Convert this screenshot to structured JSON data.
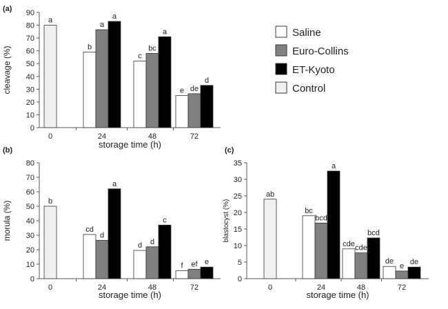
{
  "chart_data": [
    {
      "type": "bar",
      "panel_label": "(a)",
      "xlabel": "storage time (h)",
      "ylabel": "cleavage (%)",
      "ylim": [
        0,
        90
      ],
      "yticks": [
        0,
        10,
        20,
        30,
        40,
        50,
        60,
        70,
        80,
        90
      ],
      "groups": [
        {
          "label": "0",
          "bars": [
            {
              "series": "Control",
              "value": 80,
              "letter": "a"
            }
          ]
        },
        {
          "label": "24",
          "bars": [
            {
              "series": "Saline",
              "value": 59,
              "letter": "b"
            },
            {
              "series": "Euro-Collins",
              "value": 76.5,
              "letter": "a"
            },
            {
              "series": "ET-Kyoto",
              "value": 83,
              "letter": "a"
            }
          ]
        },
        {
          "label": "48",
          "bars": [
            {
              "series": "Saline",
              "value": 52,
              "letter": "c"
            },
            {
              "series": "Euro-Collins",
              "value": 58,
              "letter": "bc"
            },
            {
              "series": "ET-Kyoto",
              "value": 71,
              "letter": "a"
            }
          ]
        },
        {
          "label": "72",
          "bars": [
            {
              "series": "Saline",
              "value": 25,
              "letter": "e"
            },
            {
              "series": "Euro-Collins",
              "value": 26.5,
              "letter": "de"
            },
            {
              "series": "ET-Kyoto",
              "value": 33,
              "letter": "d"
            }
          ]
        }
      ]
    },
    {
      "type": "bar",
      "panel_label": "(b)",
      "xlabel": "storage time (h)",
      "ylabel": "morula (%)",
      "ylim": [
        0,
        80
      ],
      "yticks": [
        0,
        10,
        20,
        30,
        40,
        50,
        60,
        70,
        80
      ],
      "groups": [
        {
          "label": "0",
          "bars": [
            {
              "series": "Control",
              "value": 50,
              "letter": "b"
            }
          ]
        },
        {
          "label": "24",
          "bars": [
            {
              "series": "Saline",
              "value": 30.5,
              "letter": "cd"
            },
            {
              "series": "Euro-Collins",
              "value": 26.5,
              "letter": "d"
            },
            {
              "series": "ET-Kyoto",
              "value": 62,
              "letter": "a"
            }
          ]
        },
        {
          "label": "48",
          "bars": [
            {
              "series": "Saline",
              "value": 19.5,
              "letter": "d"
            },
            {
              "series": "Euro-Collins",
              "value": 22,
              "letter": "d"
            },
            {
              "series": "ET-Kyoto",
              "value": 37,
              "letter": "c"
            }
          ]
        },
        {
          "label": "72",
          "bars": [
            {
              "series": "Saline",
              "value": 5.5,
              "letter": "f"
            },
            {
              "series": "Euro-Collins",
              "value": 6.5,
              "letter": "ef"
            },
            {
              "series": "ET-Kyoto",
              "value": 8,
              "letter": "e"
            }
          ]
        }
      ]
    },
    {
      "type": "bar",
      "panel_label": "(c)",
      "xlabel": "storage time (h)",
      "ylabel": "blastocyst (%)",
      "ylim": [
        0,
        35
      ],
      "yticks": [
        0,
        5,
        10,
        15,
        20,
        25,
        30,
        35
      ],
      "groups": [
        {
          "label": "0",
          "bars": [
            {
              "series": "Control",
              "value": 24,
              "letter": "ab"
            }
          ]
        },
        {
          "label": "24",
          "bars": [
            {
              "series": "Saline",
              "value": 19,
              "letter": "bc"
            },
            {
              "series": "Euro-Collins",
              "value": 16.8,
              "letter": "bcd"
            },
            {
              "series": "ET-Kyoto",
              "value": 32.5,
              "letter": "a"
            }
          ]
        },
        {
          "label": "48",
          "bars": [
            {
              "series": "Saline",
              "value": 9,
              "letter": "cde"
            },
            {
              "series": "Euro-Collins",
              "value": 7.8,
              "letter": "cde"
            },
            {
              "series": "ET-Kyoto",
              "value": 12.3,
              "letter": "bcd"
            }
          ]
        },
        {
          "label": "72",
          "bars": [
            {
              "series": "Saline",
              "value": 3.7,
              "letter": "de"
            },
            {
              "series": "Euro-Collins",
              "value": 2.3,
              "letter": "e"
            },
            {
              "series": "ET-Kyoto",
              "value": 3.5,
              "letter": "de"
            }
          ]
        }
      ]
    }
  ],
  "legend": {
    "placement": "top-right",
    "entries": [
      {
        "name": "Saline",
        "color": "#ffffff"
      },
      {
        "name": "Euro-Collins",
        "color": "#808080"
      },
      {
        "name": "ET-Kyoto",
        "color": "#000000"
      },
      {
        "name": "Control",
        "color": "#f0f0f0"
      }
    ]
  }
}
